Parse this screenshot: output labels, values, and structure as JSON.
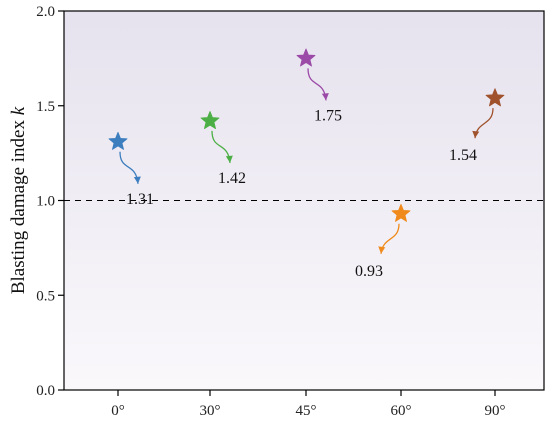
{
  "chart_data": {
    "type": "scatter",
    "title": "",
    "xlabel": "",
    "ylabel": "Blasting damage index ",
    "ylabel_italic": "k",
    "categories": [
      "0°",
      "30°",
      "45°",
      "60°",
      "90°"
    ],
    "ylim": [
      0.0,
      2.0
    ],
    "yticks": [
      "0.0",
      "0.5",
      "1.0",
      "1.5",
      "2.0"
    ],
    "reference_line": {
      "y": 1.0,
      "style": "dashed"
    },
    "points": [
      {
        "x": "0°",
        "y": 1.31,
        "label": "1.31",
        "color": "#3d7ebf",
        "arrow": "down-right"
      },
      {
        "x": "30°",
        "y": 1.42,
        "label": "1.42",
        "color": "#4caf45",
        "arrow": "down-right"
      },
      {
        "x": "45°",
        "y": 1.75,
        "label": "1.75",
        "color": "#9b4aa8",
        "arrow": "down-right"
      },
      {
        "x": "60°",
        "y": 0.93,
        "label": "0.93",
        "color": "#f08a1c",
        "arrow": "down-left"
      },
      {
        "x": "90°",
        "y": 1.54,
        "label": "1.54",
        "color": "#a0522d",
        "arrow": "down-left"
      }
    ],
    "background_gradient": {
      "top": "#e6e2ee",
      "bottom": "#faf8fb"
    },
    "grid": false,
    "legend": "none"
  }
}
